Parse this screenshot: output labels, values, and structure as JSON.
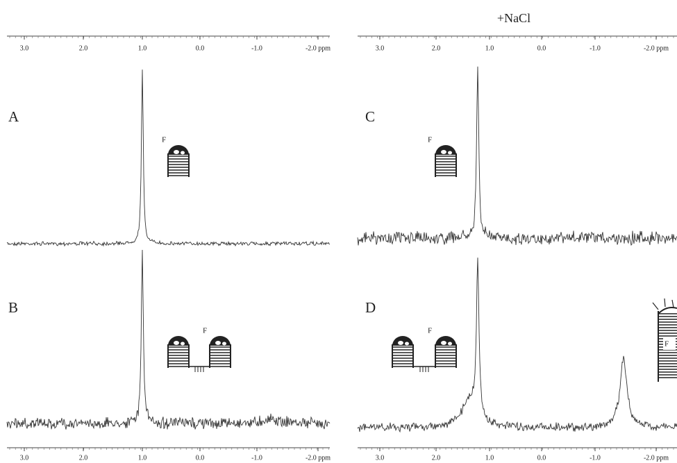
{
  "title": "+NaCl",
  "axes": [
    {
      "ticks": [
        "3.0",
        "2.0",
        "1.0",
        "0.0",
        "-1.0",
        "-2.0 ppm"
      ]
    },
    {
      "ticks": [
        "3.0",
        "2.0",
        "1.0",
        "0.0",
        "-1.0",
        "-2.0 ppm"
      ]
    },
    {
      "ticks": [
        "3.0",
        "2.0",
        "1.0",
        "0.0",
        "-1.0",
        "-2.0 ppm"
      ]
    },
    {
      "ticks": [
        "3.0",
        "2.0",
        "1.0",
        "0.0",
        "-1.0",
        "-2.0 ppm"
      ]
    }
  ],
  "panels": [
    {
      "label": "A",
      "marker": "F"
    },
    {
      "label": "B",
      "marker": "F"
    },
    {
      "label": "C",
      "marker": "F"
    },
    {
      "label": "D",
      "marker": "F",
      "marker_2": "F"
    }
  ]
}
